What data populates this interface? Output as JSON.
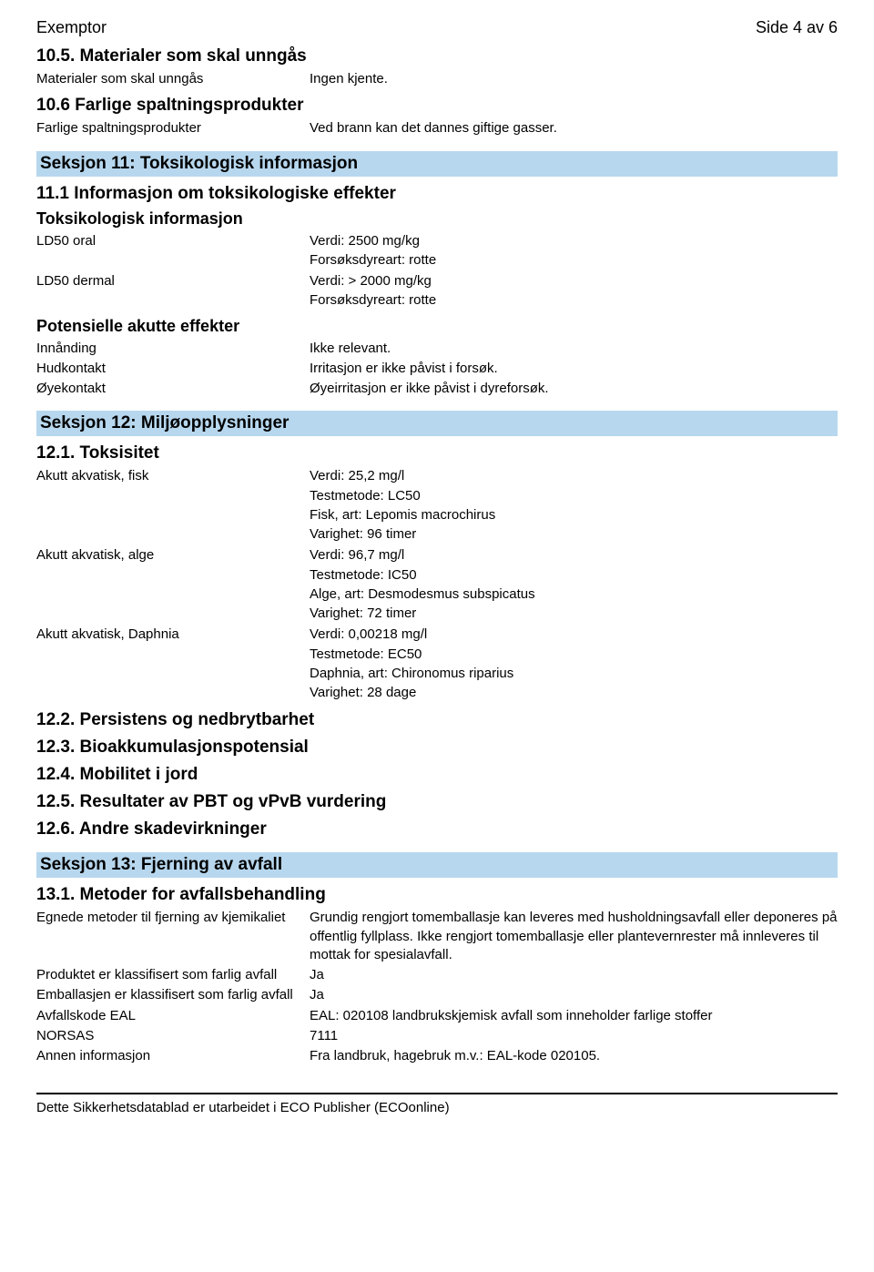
{
  "header": {
    "title": "Exemptor",
    "page": "Side 4 av 6"
  },
  "s10_5": {
    "heading": "10.5. Materialer som skal unngås",
    "row": {
      "label": "Materialer som skal unngås",
      "value": "Ingen kjente."
    }
  },
  "s10_6": {
    "heading": "10.6 Farlige spaltningsprodukter",
    "row": {
      "label": "Farlige spaltningsprodukter",
      "value": "Ved brann kan det dannes giftige gasser."
    }
  },
  "s11": {
    "bar": "Seksjon 11: Toksikologisk informasjon",
    "h1": "11.1 Informasjon om toksikologiske effekter",
    "sub1": "Toksikologisk informasjon",
    "ld50oral": {
      "label": "LD50 oral",
      "v1": "Verdi: 2500 mg/kg",
      "v2": "Forsøksdyreart: rotte"
    },
    "ld50dermal": {
      "label": "LD50 dermal",
      "v1": "Verdi: > 2000 mg/kg",
      "v2": "Forsøksdyreart: rotte"
    },
    "sub2": "Potensielle akutte effekter",
    "innand": {
      "label": "Innånding",
      "value": "Ikke relevant."
    },
    "hud": {
      "label": "Hudkontakt",
      "value": "Irritasjon er ikke påvist i forsøk."
    },
    "oye": {
      "label": "Øyekontakt",
      "value": "Øyeirritasjon er ikke påvist i dyreforsøk."
    }
  },
  "s12": {
    "bar": "Seksjon 12: Miljøopplysninger",
    "h1": "12.1. Toksisitet",
    "fisk": {
      "label": "Akutt akvatisk, fisk",
      "v1": "Verdi: 25,2 mg/l",
      "v2": "Testmetode: LC50",
      "v3": "Fisk, art: Lepomis macrochirus",
      "v4": "Varighet: 96 timer"
    },
    "alge": {
      "label": "Akutt akvatisk, alge",
      "v1": "Verdi: 96,7 mg/l",
      "v2": "Testmetode: IC50",
      "v3": "Alge, art: Desmodesmus subspicatus",
      "v4": "Varighet: 72 timer"
    },
    "daphnia": {
      "label": "Akutt akvatisk, Daphnia",
      "v1": "Verdi: 0,00218 mg/l",
      "v2": "Testmetode: EC50",
      "v3": "Daphnia, art: Chironomus riparius",
      "v4": "Varighet: 28 dage"
    },
    "h2": "12.2. Persistens og nedbrytbarhet",
    "h3": "12.3. Bioakkumulasjonspotensial",
    "h4": "12.4. Mobilitet i jord",
    "h5": "12.5. Resultater av PBT og vPvB vurdering",
    "h6": "12.6. Andre skadevirkninger"
  },
  "s13": {
    "bar": "Seksjon 13: Fjerning av avfall",
    "h1": "13.1. Metoder for avfallsbehandling",
    "metoder": {
      "label": "Egnede metoder til fjerning av kjemikaliet",
      "value": "Grundig rengjort tomemballasje kan leveres med husholdningsavfall eller deponeres på offentlig fyllplass. Ikke rengjort tomemballasje eller plantevernrester må innleveres til mottak for spesialavfall."
    },
    "produkt": {
      "label": "Produktet er klassifisert som farlig avfall",
      "value": "Ja"
    },
    "emballasje": {
      "label": "Emballasjen er klassifisert som farlig avfall",
      "value": "Ja"
    },
    "eal": {
      "label": "Avfallskode EAL",
      "value": "EAL: 020108 landbrukskjemisk avfall som inneholder farlige stoffer"
    },
    "norsas": {
      "label": "NORSAS",
      "value": "7111"
    },
    "annen": {
      "label": "Annen informasjon",
      "value": "Fra landbruk, hagebruk m.v.: EAL-kode 020105."
    }
  },
  "footer": "Dette Sikkerhetsdatablad er utarbeidet i ECO Publisher (ECOonline)"
}
